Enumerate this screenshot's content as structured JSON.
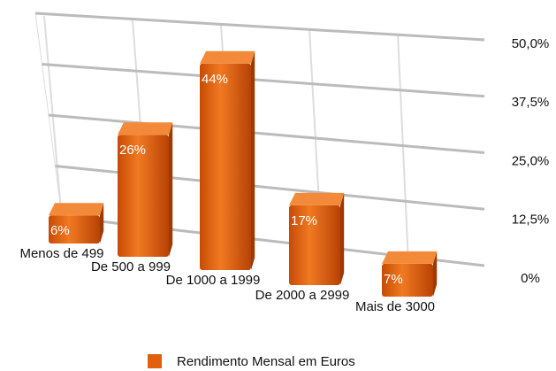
{
  "chart_data": {
    "type": "bar",
    "categories": [
      "Menos de 499",
      "De 500 a 999",
      "De 1000 a 1999",
      "De 2000 a 2999",
      "Mais de 3000"
    ],
    "series": [
      {
        "name": "Rendimento Mensal em Euros",
        "color": "#e0600f",
        "values": [
          6,
          26,
          44,
          17,
          7
        ],
        "value_labels": [
          "6%",
          "26%",
          "44%",
          "17%",
          "7%"
        ]
      }
    ],
    "ylim": [
      0,
      50
    ],
    "yticks": [
      {
        "value": 0,
        "label": "0%"
      },
      {
        "value": 12.5,
        "label": "12,5%"
      },
      {
        "value": 25,
        "label": "25,0%"
      },
      {
        "value": 37.5,
        "label": "37,5%"
      },
      {
        "value": 50,
        "label": "50,0%"
      }
    ],
    "grid": true,
    "legend": "bottom"
  }
}
